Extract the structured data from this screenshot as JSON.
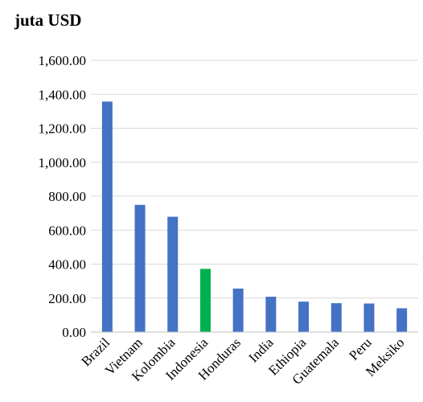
{
  "chart_data": {
    "type": "bar",
    "title": "",
    "unit_label": "juta USD",
    "xlabel": "",
    "ylabel": "",
    "categories": [
      "Brazil",
      "Vietnam",
      "Kolombia",
      "Indonesia",
      "Honduras",
      "India",
      "Ethiopia",
      "Guatemala",
      "Peru",
      "Meksiko"
    ],
    "values": [
      1357,
      749,
      679,
      372,
      256,
      208,
      179,
      170,
      168,
      140
    ],
    "highlight_category": "Indonesia",
    "y_ticks": [
      "0.00",
      "200.00",
      "400.00",
      "600.00",
      "800.00",
      "1,000.00",
      "1,200.00",
      "1,400.00",
      "1,600.00"
    ],
    "ylim": [
      0,
      1600
    ],
    "grid": true,
    "legend": "none",
    "colors": {
      "bar": "#4472C4",
      "highlight": "#00B050",
      "grid": "#D9D9D9",
      "axis": "#BFBFBF"
    }
  }
}
